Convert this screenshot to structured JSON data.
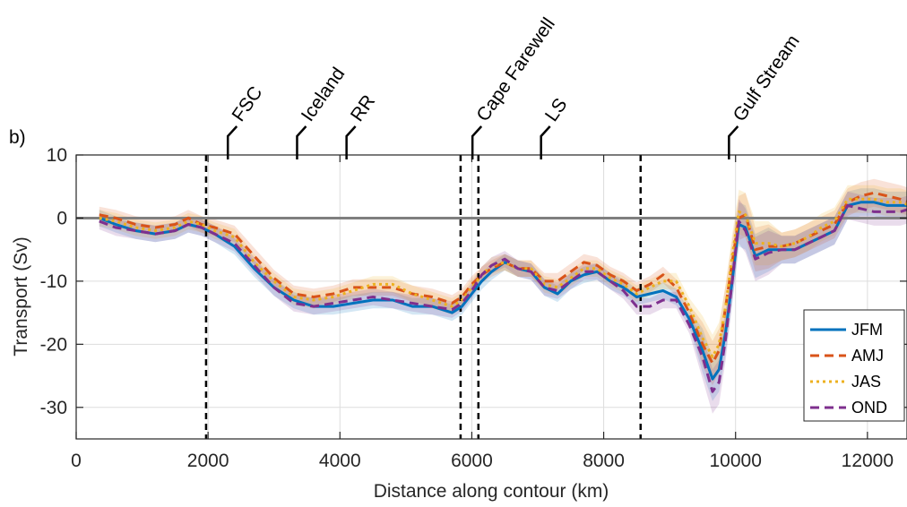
{
  "chart_data": {
    "type": "line",
    "panel_label": "b)",
    "xlabel": "Distance along contour (km)",
    "ylabel": "Transport (Sv)",
    "xlim": [
      0,
      12600
    ],
    "ylim": [
      -35,
      10
    ],
    "xticks": [
      0,
      2000,
      4000,
      6000,
      8000,
      10000,
      12000
    ],
    "yticks": [
      10,
      0,
      -10,
      -20,
      -30
    ],
    "grid": true,
    "legend_position": "bottom-right",
    "zero_line": 0,
    "vertical_markers_km": [
      1970,
      5830,
      6100,
      8560
    ],
    "locations": [
      {
        "label": "FSC",
        "x": 2300
      },
      {
        "label": "Iceland",
        "x": 3350
      },
      {
        "label": "RR",
        "x": 4100
      },
      {
        "label": "Cape Farewell",
        "x": 6010
      },
      {
        "label": "LS",
        "x": 7050
      },
      {
        "label": "Gulf Stream",
        "x": 9900
      }
    ],
    "series": [
      {
        "name": "JFM",
        "color": "#0072BD",
        "dash": "solid",
        "x": [
          350,
          600,
          900,
          1200,
          1500,
          1700,
          1900,
          2100,
          2400,
          2700,
          3000,
          3300,
          3600,
          3900,
          4200,
          4500,
          4800,
          5100,
          5400,
          5700,
          5850,
          6000,
          6150,
          6300,
          6500,
          6700,
          6900,
          7100,
          7300,
          7500,
          7700,
          7900,
          8100,
          8300,
          8500,
          8700,
          8900,
          9100,
          9300,
          9500,
          9650,
          9750,
          9850,
          9950,
          10050,
          10150,
          10300,
          10500,
          10700,
          10900,
          11100,
          11300,
          11500,
          11700,
          11900,
          12100,
          12300,
          12500,
          12650
        ],
        "y": [
          0,
          -1,
          -2,
          -2.5,
          -2,
          -1,
          -1.5,
          -2.5,
          -4.5,
          -8,
          -11,
          -13,
          -14,
          -14,
          -13.5,
          -13,
          -13,
          -14,
          -14,
          -15,
          -14,
          -12,
          -10,
          -8.5,
          -7,
          -8,
          -8.5,
          -11,
          -12,
          -10,
          -9,
          -8.5,
          -10,
          -11,
          -12.5,
          -12,
          -11.5,
          -12.5,
          -16,
          -21,
          -25.5,
          -24,
          -18,
          -10,
          -1,
          -1.5,
          -6,
          -5,
          -5,
          -5,
          -4,
          -3,
          -2,
          2,
          2.5,
          2.5,
          2,
          2,
          2
        ]
      },
      {
        "name": "AMJ",
        "color": "#D95319",
        "dash": "10,6",
        "x": [
          350,
          600,
          900,
          1200,
          1500,
          1700,
          1900,
          2100,
          2400,
          2700,
          3000,
          3300,
          3600,
          3900,
          4200,
          4500,
          4800,
          5100,
          5400,
          5700,
          5850,
          6000,
          6150,
          6300,
          6500,
          6700,
          6900,
          7100,
          7300,
          7500,
          7700,
          7900,
          8100,
          8300,
          8500,
          8700,
          8900,
          9100,
          9300,
          9500,
          9650,
          9750,
          9850,
          9950,
          10050,
          10150,
          10300,
          10500,
          10700,
          10900,
          11100,
          11300,
          11500,
          11700,
          11900,
          12100,
          12300,
          12500,
          12650
        ],
        "y": [
          0.5,
          0,
          -1,
          -1.5,
          -1,
          0,
          -1,
          -1.5,
          -2.5,
          -6,
          -9.5,
          -12,
          -12.5,
          -12,
          -11,
          -11,
          -11,
          -12,
          -12.5,
          -13.5,
          -12.5,
          -10.5,
          -9,
          -8,
          -7,
          -8,
          -8,
          -10,
          -10,
          -8.5,
          -7,
          -7.5,
          -9,
          -10,
          -11.5,
          -10.5,
          -9,
          -11,
          -15,
          -20,
          -23,
          -21,
          -14,
          -7,
          0,
          0.5,
          -5,
          -4.5,
          -4.5,
          -4,
          -3,
          -2,
          -1,
          2.5,
          3.5,
          4,
          3.5,
          3,
          2.5
        ]
      },
      {
        "name": "JAS",
        "color": "#EDB120",
        "dash": "3,4",
        "x": [
          350,
          600,
          900,
          1200,
          1500,
          1700,
          1900,
          2100,
          2400,
          2700,
          3000,
          3300,
          3600,
          3900,
          4200,
          4500,
          4800,
          5100,
          5400,
          5700,
          5850,
          6000,
          6150,
          6300,
          6500,
          6700,
          6900,
          7100,
          7300,
          7500,
          7700,
          7900,
          8100,
          8300,
          8500,
          8700,
          8900,
          9100,
          9300,
          9500,
          9650,
          9750,
          9850,
          9950,
          10050,
          10150,
          10300,
          10500,
          10700,
          10900,
          11100,
          11300,
          11500,
          11700,
          11900,
          12100,
          12300,
          12500,
          12650
        ],
        "y": [
          0,
          -0.5,
          -1.5,
          -2,
          -1.5,
          -0.5,
          -1,
          -2,
          -3,
          -7,
          -10,
          -12.5,
          -13,
          -12.5,
          -11.5,
          -10.5,
          -10.5,
          -12,
          -13,
          -14,
          -13,
          -11,
          -9,
          -7.5,
          -7,
          -8,
          -8,
          -10.5,
          -11,
          -9.5,
          -8,
          -8,
          -9.5,
          -10.5,
          -12,
          -11,
          -10,
          -10,
          -14,
          -19,
          -22,
          -20,
          -14,
          -6,
          1,
          0.5,
          -4,
          -4,
          -4.5,
          -4,
          -3,
          -1.5,
          -0.5,
          3,
          3,
          3,
          2.5,
          2.5,
          2
        ]
      },
      {
        "name": "OND",
        "color": "#7E2F8E",
        "dash": "10,6",
        "x": [
          350,
          600,
          900,
          1200,
          1500,
          1700,
          1900,
          2100,
          2400,
          2700,
          3000,
          3300,
          3600,
          3900,
          4200,
          4500,
          4800,
          5100,
          5400,
          5700,
          5850,
          6000,
          6150,
          6300,
          6500,
          6700,
          6900,
          7100,
          7300,
          7500,
          7700,
          7900,
          8100,
          8300,
          8500,
          8700,
          8900,
          9100,
          9300,
          9500,
          9650,
          9750,
          9850,
          9950,
          10050,
          10150,
          10300,
          10500,
          10700,
          10900,
          11100,
          11300,
          11500,
          11700,
          11900,
          12100,
          12300,
          12500,
          12650
        ],
        "y": [
          -0.5,
          -1.5,
          -2,
          -2.5,
          -2,
          -1,
          -1.5,
          -2.5,
          -4,
          -7.5,
          -11,
          -13.5,
          -14,
          -13.5,
          -13,
          -12.5,
          -13,
          -13.5,
          -14,
          -14.5,
          -13.5,
          -11.5,
          -9,
          -7.5,
          -6.5,
          -8,
          -8.5,
          -11,
          -11.5,
          -10,
          -8.5,
          -8.5,
          -10,
          -11.5,
          -14,
          -14,
          -13,
          -13,
          -17,
          -22,
          -27.5,
          -26,
          -19,
          -10,
          -0.5,
          -2,
          -6.5,
          -5.5,
          -5,
          -5,
          -4,
          -3,
          -2,
          2,
          1.5,
          1,
          1,
          1,
          1.5
        ]
      }
    ]
  }
}
